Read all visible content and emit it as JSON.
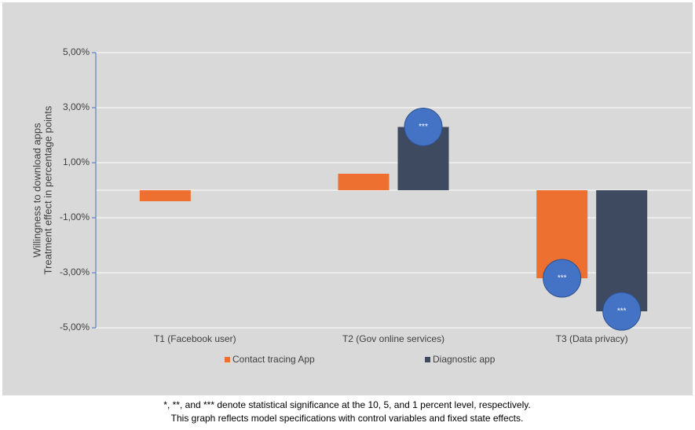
{
  "chart_data": {
    "type": "bar",
    "y_label": [
      "Willingness to download apps",
      "Treatment effect in percentage points"
    ],
    "categories": [
      "T1 (Facebook user)",
      "T2 (Gov online services)",
      "T3 (Data privacy)"
    ],
    "series": [
      {
        "name": "Contact tracing App",
        "color": "#ed7031",
        "values": [
          -0.4,
          0.6,
          -3.2
        ],
        "significance": [
          null,
          null,
          "***"
        ]
      },
      {
        "name": "Diagnostic app",
        "color": "#3e4a5f",
        "values": [
          null,
          2.3,
          -4.4
        ],
        "significance": [
          null,
          "***",
          "***"
        ]
      }
    ],
    "marker_color": "#4472c4",
    "ylim": [
      -5,
      5
    ],
    "yticks": [
      {
        "value": 5,
        "label": "5,00%"
      },
      {
        "value": 3,
        "label": "3,00%"
      },
      {
        "value": 1,
        "label": "1,00%"
      },
      {
        "value": -1,
        "label": "-1,00%"
      },
      {
        "value": -3,
        "label": "-3,00%"
      },
      {
        "value": -5,
        "label": "-5,00%"
      }
    ],
    "grid": true,
    "footnotes": [
      "*, **, and *** denote statistical significance at the 10, 5, and 1 percent level, respectively.",
      "This graph reflects model specifications with control variables and fixed state effects."
    ]
  }
}
